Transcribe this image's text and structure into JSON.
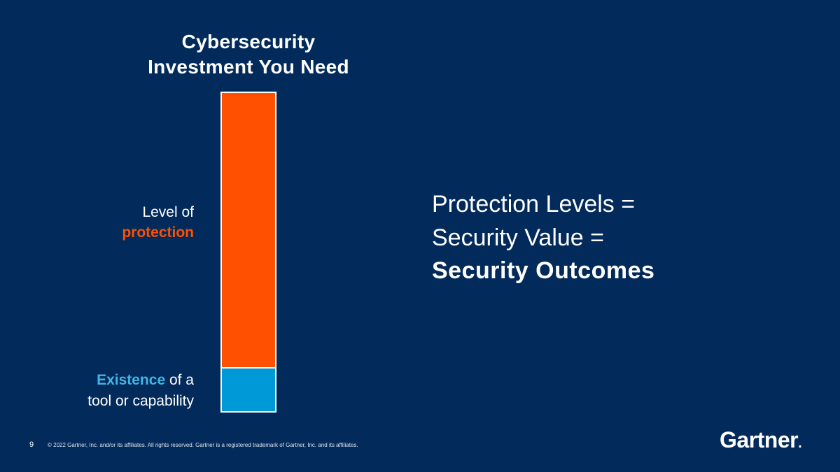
{
  "slide": {
    "title": [
      "Cybersecurity",
      "Investment You Need"
    ],
    "bar_labels": {
      "top": {
        "plain": "Level of",
        "highlight": "protection"
      },
      "bottom": {
        "highlight": "Existence",
        "plain": " of a",
        "line2": "tool or capability"
      }
    },
    "statement": [
      "Protection Levels =",
      "Security Value =",
      "Security Outcomes"
    ],
    "footer": {
      "page_number": "9",
      "copyright": "© 2022 Gartner, Inc. and/or its affiliates. All rights reserved. Gartner is a registered trademark of Gartner, Inc. and its affiliates.",
      "logo": "Gartner",
      "logo_mark": "."
    }
  }
}
